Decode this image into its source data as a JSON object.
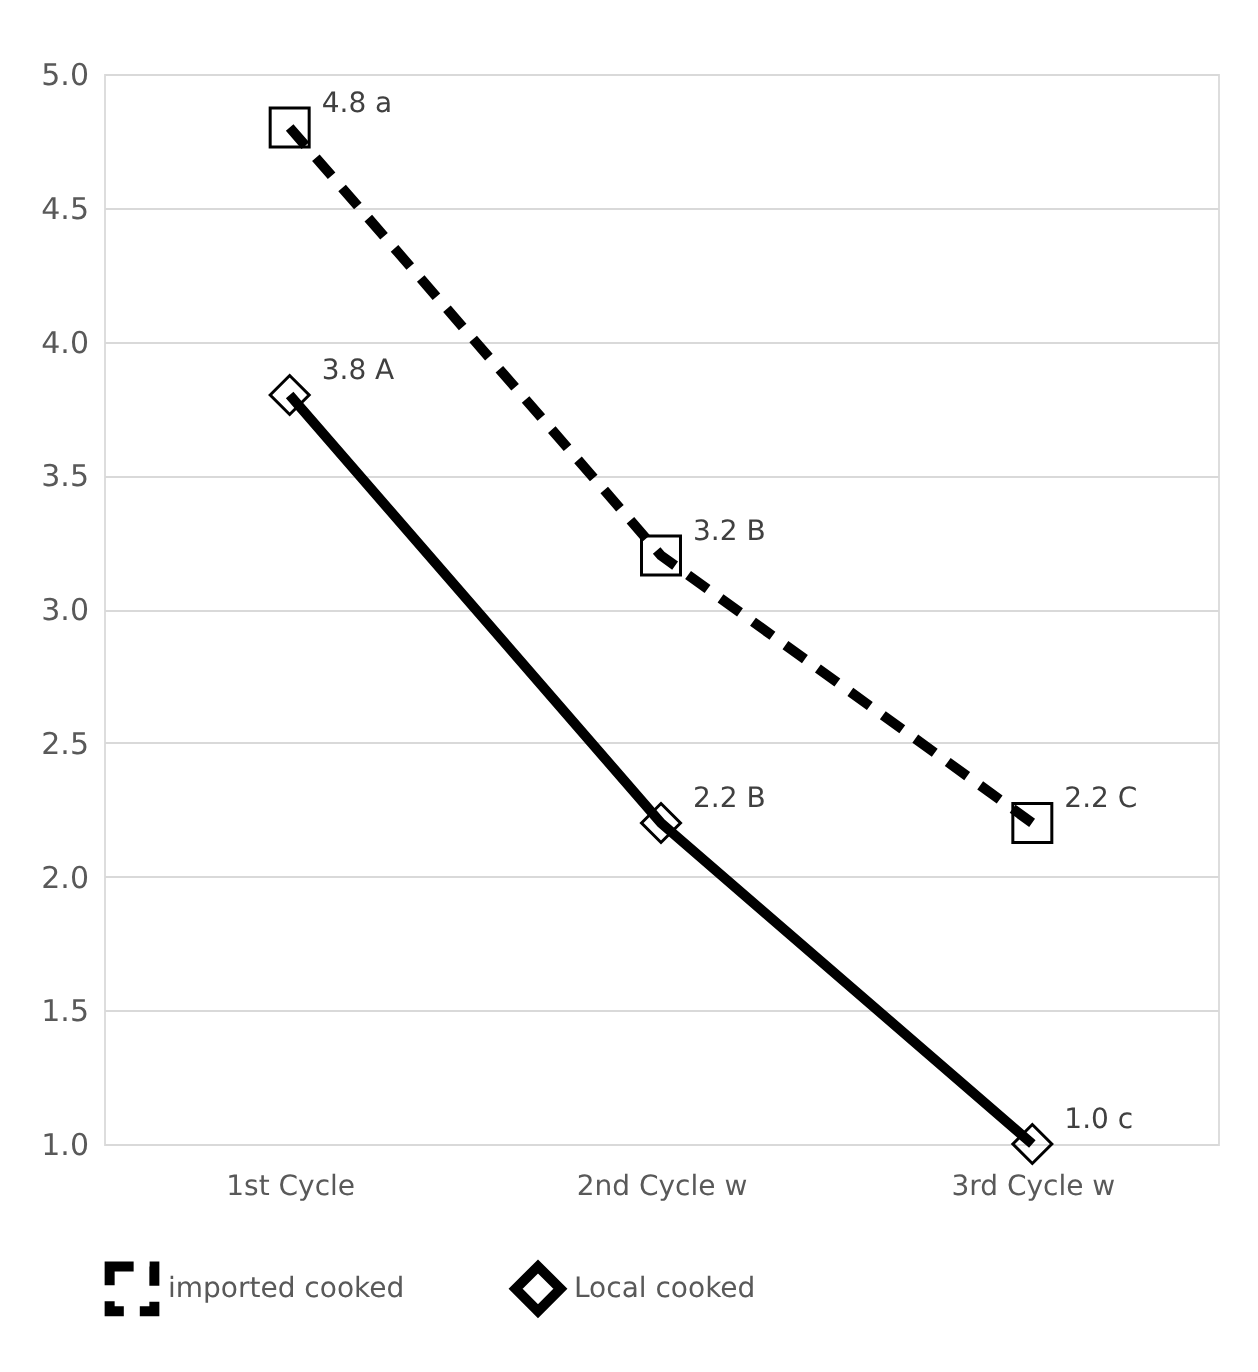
{
  "chart_data": {
    "type": "line",
    "categories": [
      "1st   Cycle",
      "2nd Cycle w",
      "3rd Cycle w"
    ],
    "series": [
      {
        "name": "imported  cooked",
        "color": "#000000",
        "values": [
          4.8,
          3.2,
          2.2
        ],
        "value_labels": [
          "4.8 a",
          "3.2 B",
          "2.2 C"
        ],
        "marker": "square",
        "line_style": "dashed"
      },
      {
        "name": "Local  cooked",
        "color": "#000000",
        "values": [
          3.8,
          2.2,
          1.0
        ],
        "value_labels": [
          "3.8 A",
          "2.2 B",
          "1.0 c"
        ],
        "marker": "diamond",
        "line_style": "solid"
      }
    ],
    "ylim": [
      1.0,
      5.0
    ],
    "yticks": [
      {
        "value": 1.0,
        "label": "1.0"
      },
      {
        "value": 1.5,
        "label": "1.5"
      },
      {
        "value": 2.0,
        "label": "2.0"
      },
      {
        "value": 2.5,
        "label": "2.5"
      },
      {
        "value": 3.0,
        "label": "3.0"
      },
      {
        "value": 3.5,
        "label": "3.5"
      },
      {
        "value": 4.0,
        "label": "4.0"
      },
      {
        "value": 4.5,
        "label": "4.5"
      },
      {
        "value": 5.0,
        "label": "5.0"
      }
    ],
    "grid": "y",
    "legend": "bottom"
  }
}
